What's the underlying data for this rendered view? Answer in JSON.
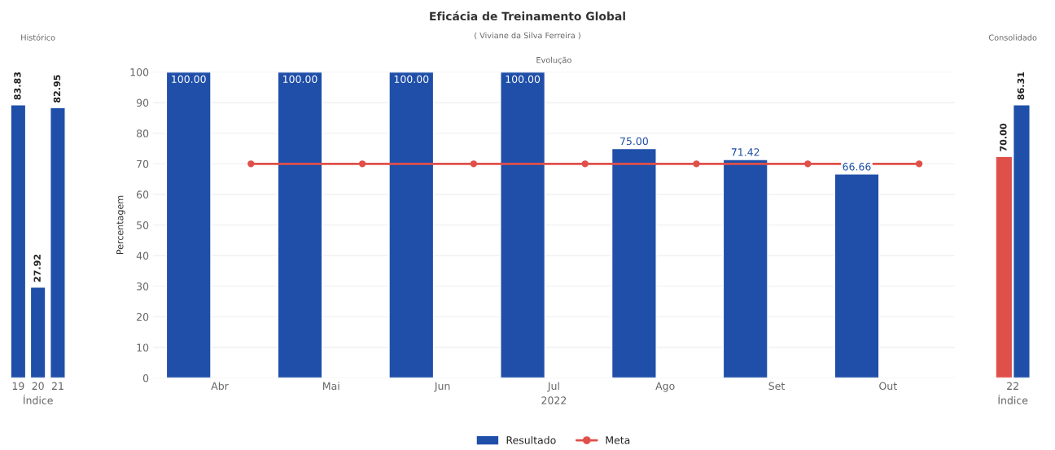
{
  "chart_data": [
    {
      "type": "bar",
      "title": "Histórico",
      "xlabel": "Índice",
      "categories": [
        "19",
        "20",
        "21"
      ],
      "series": [
        {
          "color": "#1f4fa8",
          "values": [
            83.83,
            27.92,
            82.95
          ],
          "value_labels": [
            "83.83",
            "27.92",
            "82.95"
          ]
        }
      ]
    },
    {
      "type": "bar",
      "title": "Eficácia de Treinamento Global",
      "subtitle": "( Viviane da Silva Ferreira )",
      "annotations": [
        "Evolução"
      ],
      "xlabel": "2022",
      "ylabel": "Percentagem",
      "categories": [
        "Abr",
        "Mai",
        "Jun",
        "Jul",
        "Ago",
        "Set",
        "Out"
      ],
      "series": [
        {
          "name": "Resultado",
          "type": "bar",
          "color": "#1f4fa8",
          "values": [
            100,
            100,
            100,
            100,
            75,
            71.42,
            66.66
          ],
          "value_labels": [
            "100.00",
            "100.00",
            "100.00",
            "100.00",
            "75.00",
            "71.42",
            "66.66"
          ]
        },
        {
          "name": "Meta",
          "type": "line",
          "color": "#e0504a",
          "marker": "circle",
          "values": [
            70,
            70,
            70,
            70,
            70,
            70,
            70
          ]
        }
      ],
      "ylim": [
        0,
        100
      ],
      "yticks": [
        0,
        10,
        20,
        30,
        40,
        50,
        60,
        70,
        80,
        90,
        100
      ],
      "grid": "y",
      "legend": "bottom"
    },
    {
      "type": "bar",
      "title": "Consolidado",
      "xlabel": "Índice",
      "categories": [
        "22"
      ],
      "series": [
        {
          "color": "#e0504a",
          "values": [
            70.0
          ],
          "value_labels": [
            "70.00"
          ]
        },
        {
          "color": "#1f4fa8",
          "values": [
            86.31
          ],
          "value_labels": [
            "86.31"
          ]
        }
      ]
    }
  ]
}
